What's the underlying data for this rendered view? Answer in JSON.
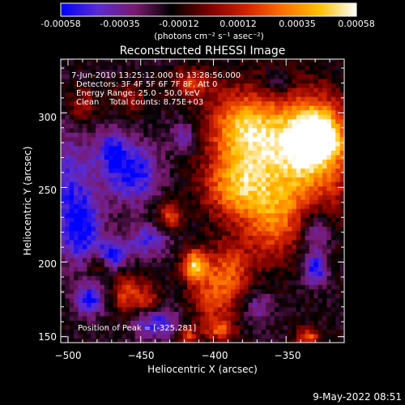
{
  "colorbar": {
    "tick_labels": [
      "-0.00058",
      "-0.00035",
      "-0.00012",
      "0.00012",
      "0.00035",
      "0.00058"
    ],
    "units": "(photons cm⁻² s⁻¹ asec⁻²)",
    "range": [
      -0.00058,
      0.00058
    ],
    "colormap": [
      "#0000ff",
      "#5a2bd1",
      "#7a1a70",
      "#000000",
      "#7a0000",
      "#d02000",
      "#ff7000",
      "#ffc000",
      "#ffffff"
    ]
  },
  "annotations": {
    "time_range": "7-Jun-2010 13:25:12.000 to 13:28:56.000",
    "detectors": "Detectors: 3F 4F 5F 6F 7F 8F, Att 0",
    "energy_range": "Energy Range: 25.0 - 50.0 keV",
    "clean": "Clean    Total counts: 8.75E+03",
    "peak": "Position of Peak = [-325,281]"
  },
  "footer": {
    "timestamp": "9-May-2022 08:51"
  },
  "chart_data": {
    "type": "heatmap",
    "title": "Reconstructed RHESSI Image",
    "xlabel": "Heliocentric X (arcsec)",
    "ylabel": "Heliocentric Y (arcsec)",
    "xlim": [
      -505,
      -310
    ],
    "ylim": [
      146,
      336
    ],
    "xticks": [
      -500,
      -450,
      -400,
      -350
    ],
    "yticks": [
      150,
      200,
      250,
      300
    ],
    "x_tick_labels": [
      "−500",
      "−450",
      "−400",
      "−350"
    ],
    "y_tick_labels": [
      "150",
      "200",
      "250",
      "300"
    ],
    "peak_position": [
      -325,
      281
    ],
    "grid": false,
    "bright_sources": [
      {
        "x": -345,
        "y": 270,
        "intensity": 0.00058,
        "sx": 40,
        "sy": 40
      },
      {
        "x": -330,
        "y": 286,
        "intensity": 0.00058,
        "sx": 18,
        "sy": 20
      },
      {
        "x": -325,
        "y": 281,
        "intensity": 0.00058,
        "sx": 8,
        "sy": 8
      },
      {
        "x": -380,
        "y": 290,
        "intensity": 0.00045,
        "sx": 24,
        "sy": 24
      },
      {
        "x": -385,
        "y": 250,
        "intensity": 0.0004,
        "sx": 22,
        "sy": 20
      },
      {
        "x": -360,
        "y": 225,
        "intensity": 0.0003,
        "sx": 20,
        "sy": 24
      },
      {
        "x": -400,
        "y": 180,
        "intensity": 0.00035,
        "sx": 16,
        "sy": 26
      },
      {
        "x": -385,
        "y": 195,
        "intensity": 0.00025,
        "sx": 14,
        "sy": 18
      },
      {
        "x": -460,
        "y": 180,
        "intensity": 0.00035,
        "sx": 10,
        "sy": 14
      },
      {
        "x": -445,
        "y": 175,
        "intensity": 0.0003,
        "sx": 8,
        "sy": 10
      },
      {
        "x": -480,
        "y": 200,
        "intensity": 0.0003,
        "sx": 8,
        "sy": 8
      },
      {
        "x": -413,
        "y": 198,
        "intensity": 0.00055,
        "sx": 8,
        "sy": 10
      },
      {
        "x": -430,
        "y": 232,
        "intensity": 0.00035,
        "sx": 8,
        "sy": 10
      },
      {
        "x": -490,
        "y": 305,
        "intensity": 0.00025,
        "sx": 10,
        "sy": 12
      },
      {
        "x": -458,
        "y": 310,
        "intensity": 0.0002,
        "sx": 12,
        "sy": 10
      },
      {
        "x": -415,
        "y": 320,
        "intensity": 0.0003,
        "sx": 14,
        "sy": 10
      },
      {
        "x": -335,
        "y": 150,
        "intensity": 0.0004,
        "sx": 8,
        "sy": 6
      },
      {
        "x": -418,
        "y": 151,
        "intensity": 0.00035,
        "sx": 6,
        "sy": 6
      },
      {
        "x": -395,
        "y": 155,
        "intensity": 0.0003,
        "sx": 10,
        "sy": 6
      },
      {
        "x": -500,
        "y": 250,
        "intensity": -0.0003,
        "sx": 20,
        "sy": 40
      },
      {
        "x": -455,
        "y": 260,
        "intensity": -0.0004,
        "sx": 18,
        "sy": 20
      },
      {
        "x": -490,
        "y": 220,
        "intensity": -0.0003,
        "sx": 14,
        "sy": 22
      },
      {
        "x": -470,
        "y": 205,
        "intensity": -0.0004,
        "sx": 12,
        "sy": 10
      },
      {
        "x": -445,
        "y": 215,
        "intensity": -0.0003,
        "sx": 14,
        "sy": 10
      },
      {
        "x": -485,
        "y": 175,
        "intensity": -0.0004,
        "sx": 10,
        "sy": 10
      },
      {
        "x": -440,
        "y": 160,
        "intensity": -0.00035,
        "sx": 16,
        "sy": 10
      },
      {
        "x": -330,
        "y": 220,
        "intensity": -0.0003,
        "sx": 10,
        "sy": 16
      },
      {
        "x": -330,
        "y": 195,
        "intensity": -0.0004,
        "sx": 8,
        "sy": 10
      },
      {
        "x": -470,
        "y": 275,
        "intensity": -0.0003,
        "sx": 10,
        "sy": 14
      },
      {
        "x": -420,
        "y": 285,
        "intensity": -0.00025,
        "sx": 10,
        "sy": 10
      },
      {
        "x": -355,
        "y": 320,
        "intensity": -0.0002,
        "sx": 10,
        "sy": 8
      },
      {
        "x": -370,
        "y": 170,
        "intensity": -0.0002,
        "sx": 10,
        "sy": 12
      }
    ]
  }
}
